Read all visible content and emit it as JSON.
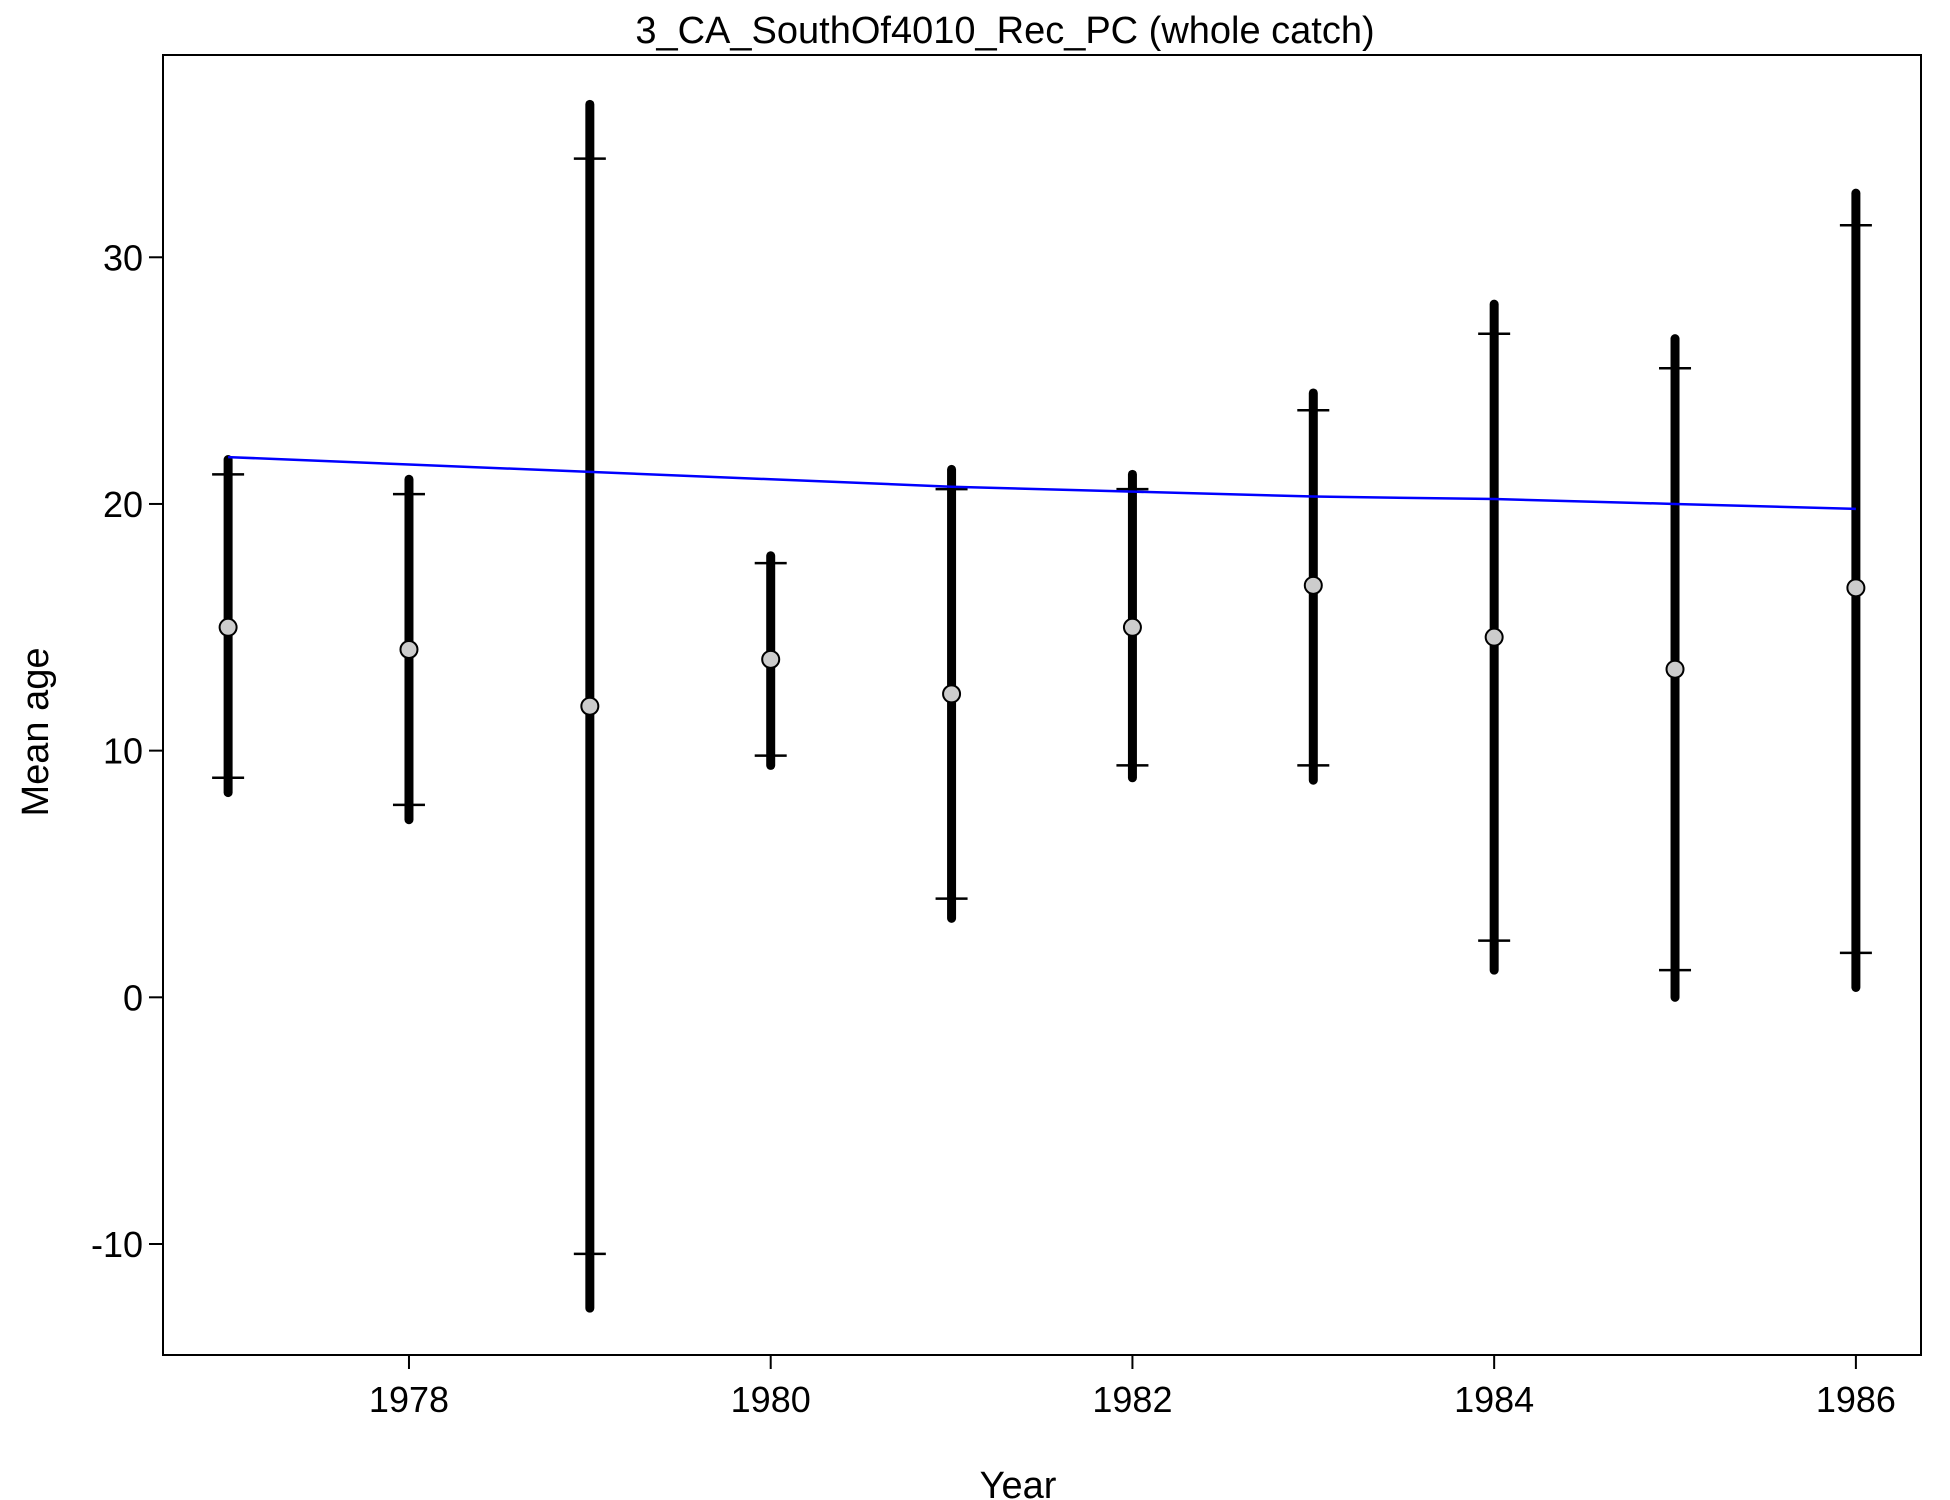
{
  "chart_data": {
    "type": "scatter",
    "title": "3_CA_SouthOf4010_Rec_PC (whole catch)",
    "xlabel": "Year",
    "ylabel": "Mean age",
    "xlim": [
      1976.64,
      1986.36
    ],
    "ylim": [
      -14.5,
      38.2
    ],
    "x_ticks": [
      1978,
      1980,
      1982,
      1984,
      1986
    ],
    "y_ticks": [
      -10,
      0,
      10,
      20,
      30
    ],
    "grid": false,
    "legend": "none",
    "series": [
      {
        "kind": "observed",
        "points": [
          {
            "x": 1977,
            "y": 15.0,
            "ci_outer": [
              8.3,
              21.8
            ],
            "ci_inner": [
              8.9,
              21.2
            ]
          },
          {
            "x": 1978,
            "y": 14.1,
            "ci_outer": [
              7.2,
              21.0
            ],
            "ci_inner": [
              7.8,
              20.4
            ]
          },
          {
            "x": 1979,
            "y": 11.8,
            "ci_outer": [
              -12.6,
              36.2
            ],
            "ci_inner": [
              -10.4,
              34.0
            ]
          },
          {
            "x": 1980,
            "y": 13.7,
            "ci_outer": [
              9.4,
              17.9
            ],
            "ci_inner": [
              9.8,
              17.6
            ]
          },
          {
            "x": 1981,
            "y": 12.3,
            "ci_outer": [
              3.2,
              21.4
            ],
            "ci_inner": [
              4.0,
              20.6
            ]
          },
          {
            "x": 1982,
            "y": 15.0,
            "ci_outer": [
              8.9,
              21.2
            ],
            "ci_inner": [
              9.4,
              20.6
            ]
          },
          {
            "x": 1983,
            "y": 16.7,
            "ci_outer": [
              8.8,
              24.5
            ],
            "ci_inner": [
              9.4,
              23.8
            ]
          },
          {
            "x": 1984,
            "y": 14.6,
            "ci_outer": [
              1.1,
              28.1
            ],
            "ci_inner": [
              2.3,
              26.9
            ]
          },
          {
            "x": 1985,
            "y": 13.3,
            "ci_outer": [
              0.0,
              26.7
            ],
            "ci_inner": [
              1.1,
              25.5
            ]
          },
          {
            "x": 1986,
            "y": 16.6,
            "ci_outer": [
              0.4,
              32.6
            ],
            "ci_inner": [
              1.8,
              31.3
            ]
          }
        ]
      },
      {
        "kind": "expected",
        "x": [
          1977,
          1978,
          1979,
          1980,
          1981,
          1982,
          1983,
          1984,
          1985,
          1986
        ],
        "y": [
          21.9,
          21.6,
          21.3,
          21.0,
          20.7,
          20.5,
          20.3,
          20.2,
          20.0,
          19.8
        ]
      }
    ],
    "colors": {
      "points_fill": "#cccccc",
      "points_stroke": "#000000",
      "error_bars": "#000000",
      "expected_line": "#0000ff"
    }
  }
}
